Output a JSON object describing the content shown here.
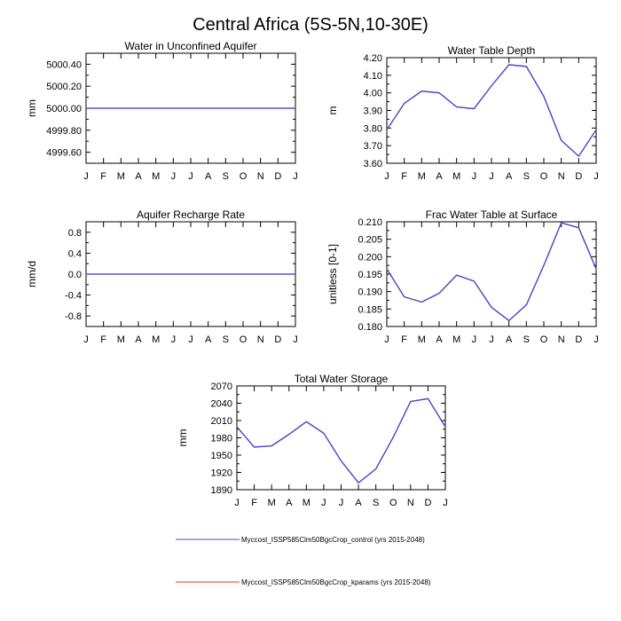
{
  "figure": {
    "title": "Central Africa (5S-5N,10-30E)"
  },
  "legend": {
    "entries": [
      {
        "label": "Myccost_ISSP585Clm50BgcCrop_control (yrs 2015-2048)",
        "color": "#3b4fd8"
      },
      {
        "label": "Myccost_ISSP585Clm50BgcCrop_kparams (yrs 2015-2048)",
        "color": "#ff2a2a"
      }
    ]
  },
  "chart_data": [
    {
      "type": "line",
      "title": "Water in Unconfined Aquifer",
      "ylabel": "mm",
      "xlabel": "",
      "categories": [
        "J",
        "F",
        "M",
        "A",
        "M",
        "J",
        "J",
        "A",
        "S",
        "O",
        "N",
        "D",
        "J"
      ],
      "ylim": [
        4999.5,
        5000.5
      ],
      "yticks": [
        4999.6,
        4999.8,
        5000.0,
        5000.2,
        5000.4
      ],
      "ytick_labels": [
        "4999.60",
        "4999.80",
        "5000.00",
        "5000.20",
        "5000.40"
      ],
      "series": [
        {
          "name": "Myccost_ISSP585Clm50BgcCrop_control (yrs 2015-2048)",
          "color": "#3b4fd8",
          "values": [
            5000,
            5000,
            5000,
            5000,
            5000,
            5000,
            5000,
            5000,
            5000,
            5000,
            5000,
            5000,
            5000
          ]
        },
        {
          "name": "Myccost_ISSP585Clm50BgcCrop_kparams (yrs 2015-2048)",
          "color": "#ff2a2a",
          "values": [
            5000,
            5000,
            5000,
            5000,
            5000,
            5000,
            5000,
            5000,
            5000,
            5000,
            5000,
            5000,
            5000
          ]
        }
      ]
    },
    {
      "type": "line",
      "title": "Water Table Depth",
      "ylabel": "m",
      "xlabel": "",
      "categories": [
        "J",
        "F",
        "M",
        "A",
        "M",
        "J",
        "J",
        "A",
        "S",
        "O",
        "N",
        "D",
        "J"
      ],
      "ylim": [
        3.6,
        4.2
      ],
      "yticks": [
        3.6,
        3.7,
        3.8,
        3.9,
        4.0,
        4.1,
        4.2
      ],
      "ytick_labels": [
        "3.60",
        "3.70",
        "3.80",
        "3.90",
        "4.00",
        "4.10",
        "4.20"
      ],
      "series": [
        {
          "name": "Myccost_ISSP585Clm50BgcCrop_control (yrs 2015-2048)",
          "color": "#3b4fd8",
          "values": [
            3.79,
            3.94,
            4.01,
            4.0,
            3.92,
            3.91,
            4.04,
            4.16,
            4.15,
            3.98,
            3.73,
            3.64,
            3.79
          ]
        },
        {
          "name": "Myccost_ISSP585Clm50BgcCrop_kparams (yrs 2015-2048)",
          "color": "#ff2a2a",
          "values": [
            3.79,
            3.94,
            4.01,
            4.0,
            3.92,
            3.91,
            4.04,
            4.16,
            4.15,
            3.98,
            3.73,
            3.64,
            3.79
          ]
        }
      ]
    },
    {
      "type": "line",
      "title": "Aquifer Recharge Rate",
      "ylabel": "mm/d",
      "xlabel": "",
      "categories": [
        "J",
        "F",
        "M",
        "A",
        "M",
        "J",
        "J",
        "A",
        "S",
        "O",
        "N",
        "D",
        "J"
      ],
      "ylim": [
        -1.0,
        1.0
      ],
      "yticks": [
        -0.8,
        -0.4,
        0.0,
        0.4,
        0.8
      ],
      "ytick_labels": [
        "-0.8",
        "-0.4",
        "0.0",
        "0.4",
        "0.8"
      ],
      "series": [
        {
          "name": "Myccost_ISSP585Clm50BgcCrop_control (yrs 2015-2048)",
          "color": "#3b4fd8",
          "values": [
            0,
            0,
            0,
            0,
            0,
            0,
            0,
            0,
            0,
            0,
            0,
            0,
            0
          ]
        },
        {
          "name": "Myccost_ISSP585Clm50BgcCrop_kparams (yrs 2015-2048)",
          "color": "#ff2a2a",
          "values": [
            0,
            0,
            0,
            0,
            0,
            0,
            0,
            0,
            0,
            0,
            0,
            0,
            0
          ]
        }
      ]
    },
    {
      "type": "line",
      "title": "Frac Water Table at Surface",
      "ylabel": "unitless [0-1]",
      "xlabel": "",
      "categories": [
        "J",
        "F",
        "M",
        "A",
        "M",
        "J",
        "J",
        "A",
        "S",
        "O",
        "N",
        "D",
        "J"
      ],
      "ylim": [
        0.18,
        0.21
      ],
      "yticks": [
        0.18,
        0.185,
        0.19,
        0.195,
        0.2,
        0.205,
        0.21
      ],
      "ytick_labels": [
        "0.180",
        "0.185",
        "0.190",
        "0.195",
        "0.200",
        "0.205",
        "0.210"
      ],
      "series": [
        {
          "name": "Myccost_ISSP585Clm50BgcCrop_control (yrs 2015-2048)",
          "color": "#3b4fd8",
          "values": [
            0.1965,
            0.1885,
            0.187,
            0.1895,
            0.1947,
            0.193,
            0.1855,
            0.1817,
            0.1862,
            0.1975,
            0.2097,
            0.2083,
            0.1965
          ]
        },
        {
          "name": "Myccost_ISSP585Clm50BgcCrop_kparams (yrs 2015-2048)",
          "color": "#ff2a2a",
          "values": [
            0.1965,
            0.1885,
            0.187,
            0.1895,
            0.1947,
            0.193,
            0.1855,
            0.1817,
            0.1862,
            0.1975,
            0.2097,
            0.2083,
            0.1965
          ]
        }
      ]
    },
    {
      "type": "line",
      "title": "Total Water Storage",
      "ylabel": "mm",
      "xlabel": "",
      "categories": [
        "J",
        "F",
        "M",
        "A",
        "M",
        "J",
        "J",
        "A",
        "S",
        "O",
        "N",
        "D",
        "J"
      ],
      "ylim": [
        1890,
        2070
      ],
      "yticks": [
        1890,
        1920,
        1950,
        1980,
        2010,
        2040,
        2070
      ],
      "ytick_labels": [
        "1890",
        "1920",
        "1950",
        "1980",
        "2010",
        "2040",
        "2070"
      ],
      "series": [
        {
          "name": "Myccost_ISSP585Clm50BgcCrop_control (yrs 2015-2048)",
          "color": "#3b4fd8",
          "values": [
            1999,
            1964,
            1966,
            1986,
            2008,
            1988,
            1940,
            1902,
            1926,
            1981,
            2043,
            2048,
            1999
          ]
        },
        {
          "name": "Myccost_ISSP585Clm50BgcCrop_kparams (yrs 2015-2048)",
          "color": "#ff2a2a",
          "values": [
            1999,
            1964,
            1966,
            1986,
            2008,
            1988,
            1940,
            1902,
            1926,
            1981,
            2043,
            2048,
            1999
          ]
        }
      ]
    }
  ]
}
